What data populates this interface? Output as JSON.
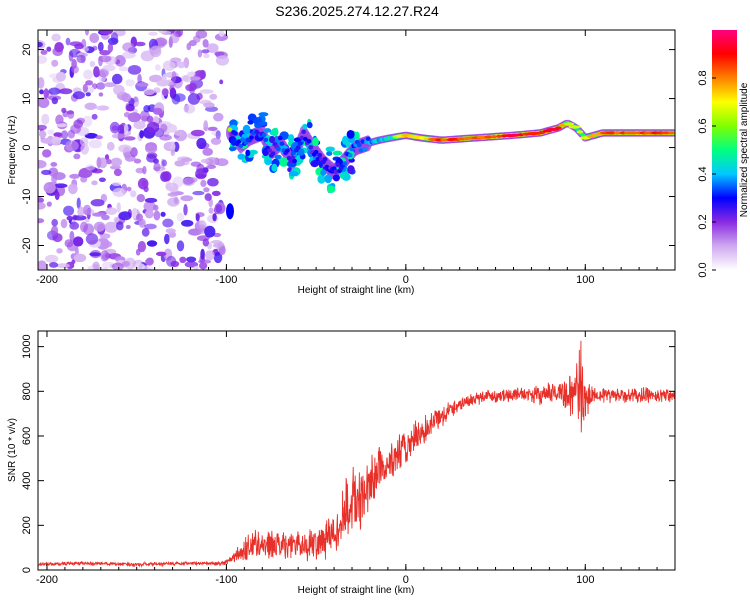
{
  "title": "S236.2025.274.12.27.R24",
  "chart_data": [
    {
      "type": "heatmap",
      "panel": "spectrogram",
      "xlabel": "Height of straight line (km)",
      "ylabel": "Frequency (Hz)",
      "xlim": [
        -205,
        150
      ],
      "ylim": [
        -25,
        24
      ],
      "xticks": [
        -200,
        -100,
        0,
        100
      ],
      "yticks": [
        -20,
        -10,
        0,
        10,
        20
      ],
      "colorbar": {
        "label": "Normalized spectral amplitude",
        "range": [
          0,
          1
        ],
        "ticks": [
          0.0,
          0.2,
          0.4,
          0.6,
          0.8
        ],
        "colors": [
          "#ffffff",
          "#cfa8f0",
          "#8a2be2",
          "#0000ff",
          "#00c8ff",
          "#00ff80",
          "#80ff00",
          "#ffff00",
          "#ff8000",
          "#ff0000",
          "#ff0080"
        ]
      },
      "noise_region": {
        "x": [
          -205,
          -102
        ],
        "freq": [
          -25,
          24
        ],
        "amplitude": 0.15
      },
      "ridge": [
        {
          "x": -97,
          "f": 3,
          "amp": 0.35
        },
        {
          "x": -92,
          "f": 0.5,
          "amp": 0.45
        },
        {
          "x": -87,
          "f": 2,
          "amp": 0.4
        },
        {
          "x": -80,
          "f": 3,
          "amp": 0.4
        },
        {
          "x": -75,
          "f": -1,
          "amp": 0.35
        },
        {
          "x": -70,
          "f": 1,
          "amp": 0.4
        },
        {
          "x": -63,
          "f": -3,
          "amp": 0.35
        },
        {
          "x": -57,
          "f": 3,
          "amp": 0.4
        },
        {
          "x": -52,
          "f": 0,
          "amp": 0.35
        },
        {
          "x": -46,
          "f": -3,
          "amp": 0.35
        },
        {
          "x": -40,
          "f": -5,
          "amp": 0.35
        },
        {
          "x": -35,
          "f": -3,
          "amp": 0.4
        },
        {
          "x": -28,
          "f": 0,
          "amp": 0.45
        },
        {
          "x": -20,
          "f": 1,
          "amp": 0.5
        },
        {
          "x": -15,
          "f": 1.5,
          "amp": 0.55
        },
        {
          "x": -8,
          "f": 2,
          "amp": 0.6
        },
        {
          "x": 0,
          "f": 2.5,
          "amp": 0.7
        },
        {
          "x": 8,
          "f": 2,
          "amp": 0.65
        },
        {
          "x": 20,
          "f": 1.5,
          "amp": 0.85
        },
        {
          "x": 40,
          "f": 2,
          "amp": 0.8
        },
        {
          "x": 60,
          "f": 2.5,
          "amp": 0.9
        },
        {
          "x": 75,
          "f": 3,
          "amp": 0.85
        },
        {
          "x": 85,
          "f": 4,
          "amp": 0.9
        },
        {
          "x": 90,
          "f": 5,
          "amp": 0.7
        },
        {
          "x": 95,
          "f": 4,
          "amp": 0.6
        },
        {
          "x": 100,
          "f": 2,
          "amp": 0.7
        },
        {
          "x": 110,
          "f": 3,
          "amp": 0.8
        },
        {
          "x": 130,
          "f": 3,
          "amp": 0.85
        },
        {
          "x": 150,
          "f": 3,
          "amp": 0.85
        }
      ]
    },
    {
      "type": "line",
      "panel": "snr",
      "xlabel": "Height of straight line (km)",
      "ylabel": "SNR (10 * v/v)",
      "xlim": [
        -205,
        150
      ],
      "ylim": [
        0,
        1070
      ],
      "xticks": [
        -200,
        -100,
        0,
        100
      ],
      "yticks": [
        0,
        200,
        400,
        600,
        800,
        1000
      ],
      "series": [
        {
          "name": "SNR",
          "color": "#e8302a",
          "x": [
            -205,
            -180,
            -150,
            -120,
            -103,
            -98,
            -90,
            -85,
            -75,
            -65,
            -55,
            -45,
            -38,
            -33,
            -28,
            -24,
            -20,
            -16,
            -12,
            -6,
            0,
            6,
            12,
            18,
            25,
            30,
            35,
            40,
            45,
            55,
            65,
            75,
            85,
            90,
            94,
            97,
            100,
            105,
            115,
            130,
            150
          ],
          "y": [
            25,
            30,
            25,
            30,
            28,
            45,
            90,
            120,
            110,
            120,
            110,
            140,
            170,
            280,
            320,
            300,
            380,
            450,
            460,
            500,
            550,
            590,
            640,
            680,
            720,
            740,
            760,
            770,
            780,
            780,
            790,
            780,
            800,
            780,
            790,
            820,
            760,
            790,
            780,
            780,
            785
          ],
          "noise_amplitude": [
            10,
            10,
            10,
            10,
            10,
            15,
            70,
            80,
            70,
            70,
            80,
            100,
            130,
            160,
            180,
            160,
            150,
            130,
            120,
            110,
            100,
            90,
            80,
            60,
            45,
            40,
            35,
            35,
            35,
            35,
            40,
            45,
            60,
            80,
            150,
            280,
            120,
            45,
            40,
            40,
            40
          ]
        }
      ]
    }
  ]
}
